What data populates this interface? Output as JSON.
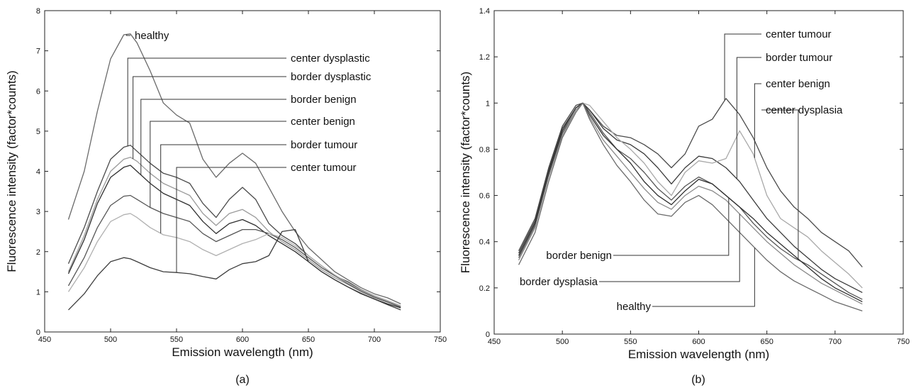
{
  "chart_data": [
    {
      "type": "line",
      "panel_label": "(a)",
      "xlabel": "Emission wavelength (nm)",
      "ylabel": "Fluorescence intensity (factor*counts)",
      "xlim": [
        450,
        750
      ],
      "ylim": [
        0,
        8
      ],
      "xticks": [
        450,
        500,
        550,
        600,
        650,
        700,
        750
      ],
      "yticks": [
        0,
        1,
        2,
        3,
        4,
        5,
        6,
        7,
        8
      ],
      "grid": false,
      "legend": "callout annotations to the right of the peaks",
      "x": [
        468,
        480,
        490,
        500,
        510,
        515,
        520,
        530,
        540,
        550,
        560,
        570,
        580,
        590,
        600,
        610,
        620,
        630,
        640,
        650,
        660,
        670,
        680,
        690,
        700,
        710,
        720
      ],
      "series": [
        {
          "name": "healthy",
          "color": "#6a6a6a",
          "values": [
            2.8,
            4.0,
            5.5,
            6.8,
            7.4,
            7.42,
            7.2,
            6.5,
            5.7,
            5.4,
            5.2,
            4.3,
            3.85,
            4.2,
            4.45,
            4.2,
            3.6,
            3.0,
            2.5,
            2.1,
            1.8,
            1.5,
            1.3,
            1.1,
            0.95,
            0.85,
            0.7
          ]
        },
        {
          "name": "center dysplastic",
          "color": "#4a4a4a",
          "values": [
            1.7,
            2.6,
            3.5,
            4.3,
            4.6,
            4.65,
            4.5,
            4.2,
            3.95,
            3.85,
            3.7,
            3.2,
            2.85,
            3.3,
            3.6,
            3.3,
            2.7,
            2.4,
            2.2,
            1.9,
            1.65,
            1.4,
            1.25,
            1.05,
            0.9,
            0.78,
            0.65
          ]
        },
        {
          "name": "border dysplastic",
          "color": "#9a9a9a",
          "values": [
            1.5,
            2.4,
            3.3,
            4.0,
            4.3,
            4.35,
            4.25,
            3.95,
            3.7,
            3.55,
            3.4,
            2.95,
            2.65,
            2.95,
            3.05,
            2.85,
            2.5,
            2.25,
            2.05,
            1.8,
            1.55,
            1.35,
            1.18,
            1.0,
            0.85,
            0.74,
            0.62
          ]
        },
        {
          "name": "border benign",
          "color": "#2f2f2f",
          "values": [
            1.45,
            2.3,
            3.2,
            3.85,
            4.1,
            4.15,
            4.0,
            3.7,
            3.45,
            3.3,
            3.15,
            2.75,
            2.45,
            2.7,
            2.8,
            2.65,
            2.4,
            2.2,
            2.0,
            1.75,
            1.5,
            1.3,
            1.12,
            0.95,
            0.82,
            0.7,
            0.6
          ]
        },
        {
          "name": "center benign",
          "color": "#555555",
          "values": [
            1.15,
            1.85,
            2.6,
            3.15,
            3.38,
            3.4,
            3.3,
            3.1,
            2.95,
            2.85,
            2.75,
            2.45,
            2.25,
            2.4,
            2.55,
            2.55,
            2.45,
            2.3,
            2.1,
            1.85,
            1.6,
            1.4,
            1.2,
            1.02,
            0.87,
            0.75,
            0.62
          ]
        },
        {
          "name": "border tumour",
          "color": "#b0b0b0",
          "values": [
            1.0,
            1.6,
            2.25,
            2.75,
            2.92,
            2.95,
            2.85,
            2.6,
            2.42,
            2.35,
            2.25,
            2.05,
            1.9,
            2.05,
            2.2,
            2.3,
            2.45,
            2.35,
            2.15,
            1.9,
            1.65,
            1.42,
            1.22,
            1.04,
            0.9,
            0.78,
            0.65
          ]
        },
        {
          "name": "center tumour",
          "color": "#3c3c3c",
          "values": [
            0.55,
            0.95,
            1.4,
            1.75,
            1.85,
            1.82,
            1.75,
            1.6,
            1.5,
            1.48,
            1.45,
            1.38,
            1.32,
            1.55,
            1.7,
            1.75,
            1.9,
            2.5,
            2.55,
            1.75,
            1.5,
            1.3,
            1.12,
            0.96,
            0.82,
            0.68,
            0.55
          ]
        }
      ]
    },
    {
      "type": "line",
      "panel_label": "(b)",
      "xlabel": "Emission wavelength (nm)",
      "ylabel": "Fluorescence intensity (factor*counts)",
      "xlim": [
        450,
        750
      ],
      "ylim": [
        0,
        1.4
      ],
      "xticks": [
        450,
        500,
        550,
        600,
        650,
        700,
        750
      ],
      "yticks": [
        0,
        0.2,
        0.4,
        0.6,
        0.8,
        1,
        1.2,
        1.4
      ],
      "grid": false,
      "legend": "callout annotations",
      "x": [
        468,
        480,
        490,
        500,
        510,
        515,
        520,
        530,
        540,
        550,
        560,
        570,
        580,
        590,
        600,
        610,
        620,
        630,
        640,
        650,
        660,
        670,
        680,
        690,
        700,
        710,
        720
      ],
      "series": [
        {
          "name": "center tumour",
          "color": "#4a4a4a",
          "values": [
            0.36,
            0.5,
            0.72,
            0.9,
            0.99,
            1.0,
            0.97,
            0.9,
            0.86,
            0.85,
            0.82,
            0.78,
            0.72,
            0.78,
            0.9,
            0.93,
            1.02,
            0.95,
            0.85,
            0.72,
            0.62,
            0.55,
            0.5,
            0.44,
            0.4,
            0.36,
            0.29
          ]
        },
        {
          "name": "border tumour",
          "color": "#3a3a3a",
          "values": [
            0.35,
            0.49,
            0.71,
            0.89,
            0.98,
            1.0,
            0.97,
            0.89,
            0.84,
            0.82,
            0.78,
            0.72,
            0.65,
            0.72,
            0.77,
            0.76,
            0.72,
            0.66,
            0.58,
            0.5,
            0.44,
            0.38,
            0.33,
            0.28,
            0.24,
            0.21,
            0.18
          ]
        },
        {
          "name": "center benign",
          "color": "#a8a8a8",
          "values": [
            0.34,
            0.48,
            0.7,
            0.88,
            0.98,
            1.0,
            0.99,
            0.92,
            0.85,
            0.8,
            0.74,
            0.66,
            0.6,
            0.7,
            0.75,
            0.74,
            0.76,
            0.88,
            0.78,
            0.6,
            0.5,
            0.46,
            0.42,
            0.36,
            0.31,
            0.26,
            0.2
          ]
        },
        {
          "name": "center dysplasia",
          "color": "#555555",
          "values": [
            0.33,
            0.47,
            0.69,
            0.87,
            0.97,
            1.0,
            0.96,
            0.87,
            0.8,
            0.76,
            0.7,
            0.63,
            0.58,
            0.64,
            0.68,
            0.65,
            0.6,
            0.55,
            0.48,
            0.42,
            0.37,
            0.33,
            0.3,
            0.26,
            0.22,
            0.18,
            0.15
          ]
        },
        {
          "name": "border benign",
          "color": "#2f2f2f",
          "values": [
            0.34,
            0.48,
            0.7,
            0.88,
            0.98,
            1.0,
            0.95,
            0.86,
            0.8,
            0.74,
            0.66,
            0.6,
            0.56,
            0.62,
            0.67,
            0.65,
            0.6,
            0.55,
            0.5,
            0.44,
            0.39,
            0.34,
            0.29,
            0.24,
            0.2,
            0.17,
            0.14
          ]
        },
        {
          "name": "border dysplasia",
          "color": "#8a8a8a",
          "values": [
            0.32,
            0.46,
            0.68,
            0.86,
            0.97,
            1.0,
            0.94,
            0.84,
            0.77,
            0.7,
            0.63,
            0.57,
            0.54,
            0.6,
            0.64,
            0.62,
            0.58,
            0.52,
            0.46,
            0.4,
            0.35,
            0.3,
            0.26,
            0.22,
            0.19,
            0.16,
            0.13
          ]
        },
        {
          "name": "healthy",
          "color": "#6a6a6a",
          "values": [
            0.3,
            0.44,
            0.66,
            0.85,
            0.96,
            1.0,
            0.93,
            0.82,
            0.73,
            0.66,
            0.58,
            0.52,
            0.51,
            0.57,
            0.6,
            0.56,
            0.5,
            0.44,
            0.38,
            0.32,
            0.27,
            0.23,
            0.2,
            0.17,
            0.14,
            0.12,
            0.1
          ]
        }
      ]
    }
  ]
}
